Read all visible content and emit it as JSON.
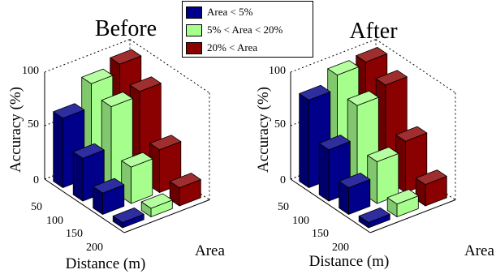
{
  "chart_data": [
    {
      "type": "bar3d",
      "title": "Before",
      "xlabel": "Distance (m)",
      "ylabel": "Area",
      "zlabel": "Accuracy (%)",
      "x_categories": [
        "50",
        "100",
        "150",
        "200"
      ],
      "z_ticks": [
        "0",
        "50",
        "100"
      ],
      "zlim": [
        0,
        100
      ],
      "series": [
        {
          "name": "Area < 5%",
          "color": "#00008b",
          "values": [
            65,
            40,
            20,
            5
          ]
        },
        {
          "name": "5% < Area < 20%",
          "color": "#a6ff8c",
          "values": [
            87,
            78,
            34,
            8
          ]
        },
        {
          "name": "20% < Area",
          "color": "#8b0000",
          "values": [
            95,
            82,
            40,
            17
          ]
        }
      ]
    },
    {
      "type": "bar3d",
      "title": "After",
      "xlabel": "Distance (m)",
      "ylabel": "Area",
      "zlabel": "Accuracy (%)",
      "x_categories": [
        "50",
        "100",
        "150",
        "200"
      ],
      "z_ticks": [
        "0",
        "50",
        "100"
      ],
      "zlim": [
        0,
        100
      ],
      "series": [
        {
          "name": "Area < 5%",
          "color": "#00008b",
          "values": [
            82,
            48,
            25,
            5
          ]
        },
        {
          "name": "5% < Area < 20%",
          "color": "#a6ff8c",
          "values": [
            95,
            79,
            39,
            12
          ]
        },
        {
          "name": "20% < Area",
          "color": "#8b0000",
          "values": [
            97,
            88,
            48,
            20
          ]
        }
      ]
    }
  ]
}
